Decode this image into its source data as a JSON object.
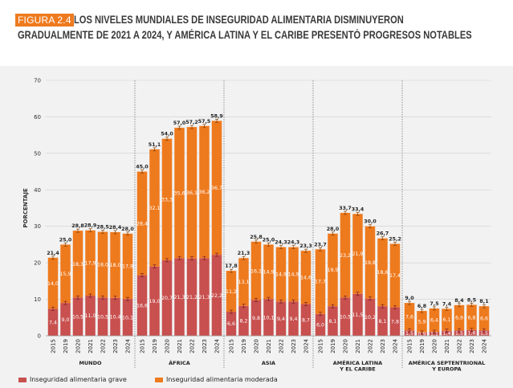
{
  "header": {
    "figure_label": "FIGURA 2.4",
    "title_line1": "LOS NIVELES MUNDIALES DE INSEGURIDAD ALIMENTARIA DISMINUYERON",
    "title_line2": "GRADUALMENTE DE 2021 A 2024, Y AMÉRICA LATINA Y EL CARIBE PRESENTÓ PROGRESOS NOTABLES"
  },
  "colors": {
    "severe": "#c8504f",
    "moderate": "#ee7a1e",
    "badge": "#ee7a1e",
    "panel": "#f2f2f2",
    "grid": "#cfcfcf"
  },
  "chart_data": {
    "type": "bar",
    "stacked": true,
    "ylabel": "PORCENTAJE",
    "ylim": [
      0,
      70
    ],
    "yticks": [
      0,
      10,
      20,
      30,
      40,
      50,
      60,
      70
    ],
    "grid": true,
    "legend_position": "bottom-left",
    "years": [
      "2015",
      "2019",
      "2020",
      "2021",
      "2022",
      "2023",
      "2024"
    ],
    "series": [
      {
        "name": "Inseguridad alimentaria grave",
        "key": "severe"
      },
      {
        "name": "Inseguridad alimentaria moderada",
        "key": "moderate"
      }
    ],
    "groups": [
      {
        "label": [
          "MUNDO"
        ],
        "severe": [
          7.4,
          9.0,
          10.5,
          11.0,
          10.5,
          10.4,
          10.1
        ],
        "moderate": [
          14.0,
          15.9,
          18.3,
          17.9,
          18.0,
          18.0,
          17.9
        ],
        "total": [
          21.4,
          25.0,
          28.8,
          28.9,
          28.5,
          28.4,
          28.0
        ]
      },
      {
        "label": [
          "ÁFRICA"
        ],
        "severe": [
          16.6,
          19.0,
          20.7,
          21.3,
          21.2,
          21.3,
          22.2
        ],
        "moderate": [
          28.4,
          32.1,
          33.3,
          35.6,
          36.1,
          36.2,
          36.7
        ],
        "total": [
          45.0,
          51.1,
          54.0,
          57.0,
          57.2,
          57.5,
          58.9
        ]
      },
      {
        "label": [
          "ASIA"
        ],
        "severe": [
          6.6,
          8.2,
          9.8,
          10.1,
          9.4,
          9.4,
          8.7
        ],
        "moderate": [
          11.2,
          13.1,
          16.1,
          14.9,
          14.9,
          14.9,
          14.6
        ],
        "total": [
          17.8,
          21.3,
          25.8,
          25.0,
          24.3,
          24.3,
          23.3
        ]
      },
      {
        "label": [
          "AMÉRICA LATINA",
          "Y EL CARIBE"
        ],
        "severe": [
          6.0,
          8.1,
          10.5,
          11.5,
          10.2,
          8.1,
          7.8
        ],
        "moderate": [
          17.7,
          19.9,
          23.2,
          21.9,
          19.8,
          18.6,
          17.4
        ],
        "total": [
          23.7,
          28.0,
          33.7,
          33.4,
          30.0,
          26.7,
          25.2
        ]
      },
      {
        "label": [
          "AMÉRICA SEPTENTRIONAL",
          "Y EUROPA"
        ],
        "severe": [
          1.5,
          0.9,
          1.1,
          1.4,
          1.5,
          1.6,
          1.5
        ],
        "moderate": [
          7.6,
          5.9,
          6.4,
          6.1,
          6.9,
          6.8,
          6.6
        ],
        "total": [
          9.0,
          6.8,
          7.5,
          7.4,
          8.4,
          8.5,
          8.1
        ]
      }
    ]
  }
}
